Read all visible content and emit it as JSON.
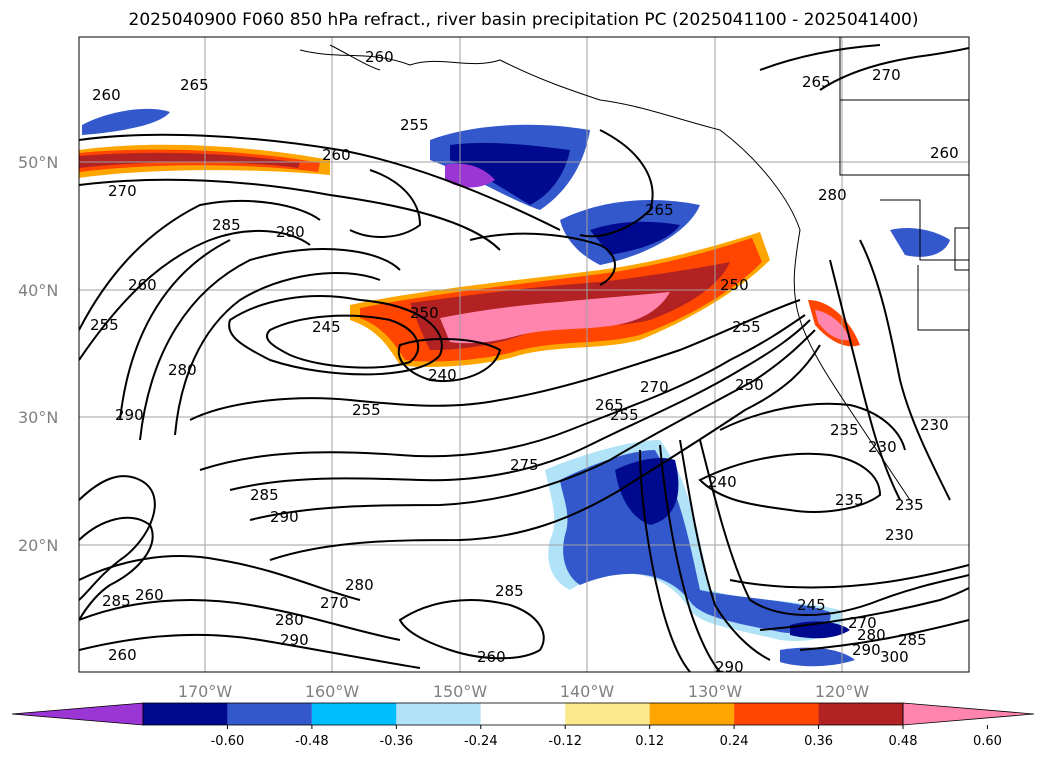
{
  "title": "2025040900 F060 850 hPa refract., river basin precipitation PC (2025041100 - 2025041400)",
  "lat_labels": [
    "50°N",
    "40°N",
    "30°N",
    "20°N"
  ],
  "lon_labels": [
    "170°W",
    "160°W",
    "150°W",
    "140°W",
    "130°W",
    "120°W"
  ],
  "colorbar": {
    "colors": [
      "#9b35d3",
      "#000a8f",
      "#3358cc",
      "#00bfff",
      "#b0e2f8",
      "#ffffff",
      "#fce98d",
      "#ffa500",
      "#ff4500",
      "#b22222",
      "#ff85ae"
    ],
    "tick_labels": [
      "-0.60",
      "-0.48",
      "-0.36",
      "-0.24",
      "-0.12",
      "0.12",
      "0.24",
      "0.36",
      "0.48",
      "0.60"
    ]
  },
  "contour_labels": [
    "260",
    "265",
    "260",
    "255",
    "260",
    "270",
    "265",
    "270",
    "260",
    "265",
    "285",
    "280",
    "260",
    "255",
    "280",
    "290",
    "250",
    "245",
    "240",
    "250",
    "255",
    "250",
    "265",
    "270",
    "255",
    "235",
    "230",
    "230",
    "275",
    "240",
    "235",
    "235",
    "230",
    "285",
    "290",
    "285",
    "285",
    "280",
    "270",
    "260",
    "245",
    "270",
    "280",
    "290",
    "300",
    "285",
    "290",
    "260",
    "290",
    "280",
    "255",
    "280",
    "260"
  ]
}
